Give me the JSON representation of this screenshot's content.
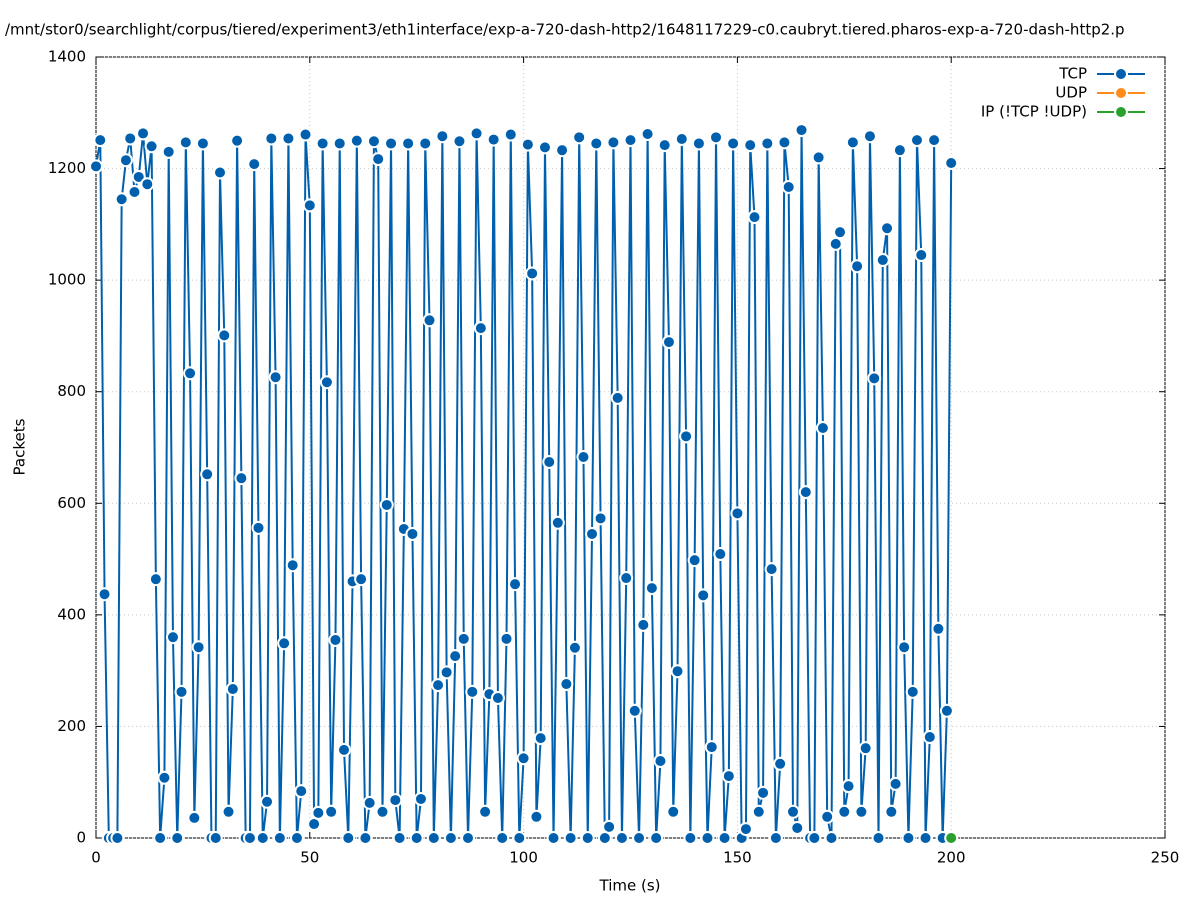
{
  "chart_data": {
    "type": "line",
    "title": "/mnt/stor0/searchlight/corpus/tiered/experiment3/eth1interface/exp-a-720-dash-http2/1648117229-c0.caubryt.tiered.pharos-exp-a-720-dash-http2.p",
    "xlabel": "Time (s)",
    "ylabel": "Packets",
    "xlim": [
      0,
      250
    ],
    "xticks": [
      0,
      50,
      100,
      150,
      200,
      250
    ],
    "ylim": [
      0,
      1400
    ],
    "yticks": [
      0,
      200,
      400,
      600,
      800,
      1000,
      1200,
      1400
    ],
    "grid": true,
    "legend": "top-right",
    "series": [
      {
        "name": "TCP",
        "color": "#0060ad",
        "x": [
          0,
          1,
          2,
          3,
          4,
          5,
          6,
          7,
          8,
          9,
          10,
          11,
          12,
          13,
          14,
          15,
          16,
          17,
          18,
          19,
          20,
          21,
          22,
          23,
          24,
          25,
          26,
          27,
          28,
          29,
          30,
          31,
          32,
          33,
          34,
          35,
          36,
          37,
          38,
          39,
          40,
          41,
          42,
          43,
          44,
          45,
          46,
          47,
          48,
          49,
          50,
          51,
          52,
          53,
          54,
          55,
          56,
          57,
          58,
          59,
          60,
          61,
          62,
          63,
          64,
          65,
          66,
          67,
          68,
          69,
          70,
          71,
          72,
          73,
          74,
          75,
          76,
          77,
          78,
          79,
          80,
          81,
          82,
          83,
          84,
          85,
          86,
          87,
          88,
          89,
          90,
          91,
          92,
          93,
          94,
          95,
          96,
          97,
          98,
          99,
          100,
          101,
          102,
          103,
          104,
          105,
          106,
          107,
          108,
          109,
          110,
          111,
          112,
          113,
          114,
          115,
          116,
          117,
          118,
          119,
          120,
          121,
          122,
          123,
          124,
          125,
          126,
          127,
          128,
          129,
          130,
          131,
          132,
          133,
          134,
          135,
          136,
          137,
          138,
          139,
          140,
          141,
          142,
          143,
          144,
          145,
          146,
          147,
          148,
          149,
          150,
          151,
          152,
          153,
          154,
          155,
          156,
          157,
          158,
          159,
          160,
          161,
          162,
          163,
          164,
          165,
          166,
          167,
          168,
          169,
          170,
          171,
          172,
          173,
          174,
          175,
          176,
          177,
          178,
          179,
          180,
          181,
          182,
          183,
          184,
          185,
          186,
          187,
          188,
          189,
          190,
          191,
          192,
          193,
          194,
          195,
          196,
          197,
          198,
          199,
          200
        ],
        "values": [
          1204,
          1251,
          437,
          0,
          0,
          0,
          1145,
          1215,
          1254,
          1158,
          1185,
          1263,
          1172,
          1240,
          464,
          0,
          108,
          1230,
          360,
          0,
          262,
          1247,
          833,
          36,
          342,
          1245,
          652,
          0,
          0,
          1193,
          901,
          47,
          267,
          1250,
          645,
          0,
          0,
          1208,
          556,
          0,
          65,
          1254,
          826,
          0,
          349,
          1254,
          489,
          0,
          84,
          1261,
          1134,
          25,
          45,
          1245,
          817,
          47,
          355,
          1245,
          158,
          0,
          460,
          1250,
          464,
          0,
          63,
          1249,
          1217,
          47,
          597,
          1245,
          68,
          0,
          554,
          1245,
          545,
          0,
          70,
          1245,
          928,
          0,
          274,
          1258,
          297,
          0,
          326,
          1249,
          357,
          0,
          262,
          1263,
          914,
          47,
          258,
          1252,
          251,
          0,
          357,
          1261,
          455,
          0,
          143,
          1243,
          1012,
          38,
          179,
          1238,
          674,
          0,
          565,
          1233,
          276,
          0,
          341,
          1256,
          683,
          0,
          545,
          1245,
          573,
          0,
          20,
          1247,
          789,
          0,
          466,
          1251,
          228,
          0,
          382,
          1262,
          448,
          0,
          138,
          1242,
          889,
          47,
          299,
          1253,
          720,
          0,
          498,
          1245,
          435,
          0,
          163,
          1256,
          509,
          0,
          111,
          1245,
          582,
          0,
          16,
          1242,
          1113,
          47,
          81,
          1245,
          482,
          0,
          133,
          1247,
          1167,
          47,
          18,
          1269,
          620,
          0,
          0,
          1220,
          735,
          38,
          0,
          1065,
          1086,
          47,
          93,
          1247,
          1025,
          47,
          161,
          1258,
          824,
          0,
          1036,
          1093,
          47,
          97,
          1233,
          342,
          0,
          262,
          1251,
          1045,
          0,
          181,
          1251,
          375,
          0,
          228,
          1210
        ]
      },
      {
        "name": "UDP",
        "color": "#ff8c1a",
        "x": [],
        "values": []
      },
      {
        "name": "IP (!TCP  !UDP)",
        "color": "#2ca02c",
        "x": [
          200
        ],
        "values": [
          0
        ]
      }
    ]
  }
}
